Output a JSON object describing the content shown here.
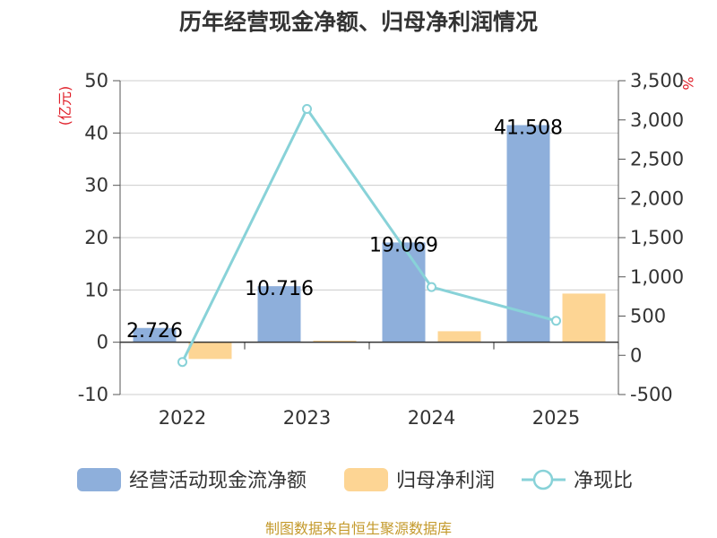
{
  "chart_data": {
    "type": "bar",
    "title": "历年经营现金净额、归母净利润情况",
    "categories": [
      "2022",
      "2023",
      "2024",
      "2025"
    ],
    "left_axis": {
      "unit_label": "(亿元)",
      "ylim": [
        -10,
        50
      ],
      "ticks": [
        "50",
        "40",
        "30",
        "20",
        "10",
        "0",
        "-10"
      ],
      "tick_values": [
        50,
        40,
        30,
        20,
        10,
        0,
        -10
      ]
    },
    "right_axis": {
      "unit_label": "%",
      "ylim": [
        -500,
        3500
      ],
      "ticks": [
        "3,500",
        "3,000",
        "2,500",
        "2,000",
        "1,500",
        "1,000",
        "500",
        "0",
        "-500"
      ],
      "tick_values": [
        3500,
        3000,
        2500,
        2000,
        1500,
        1000,
        500,
        0,
        -500
      ]
    },
    "series": [
      {
        "name": "经营活动现金流净额",
        "type": "bar",
        "axis": "left",
        "color": "#8eafdb",
        "values": [
          2.726,
          10.716,
          19.069,
          41.508
        ],
        "labels": [
          "2.726",
          "10.716",
          "19.069",
          "41.508"
        ]
      },
      {
        "name": "归母净利润",
        "type": "bar",
        "axis": "left",
        "color": "#fdd594",
        "values": [
          -3.2,
          0.3,
          2.1,
          9.3
        ]
      },
      {
        "name": "净现比",
        "type": "line",
        "axis": "right",
        "color": "#88d2d8",
        "values": [
          -85,
          3140,
          870,
          440
        ]
      }
    ],
    "legend_position": "bottom",
    "source": "制图数据来自恒生聚源数据库"
  }
}
